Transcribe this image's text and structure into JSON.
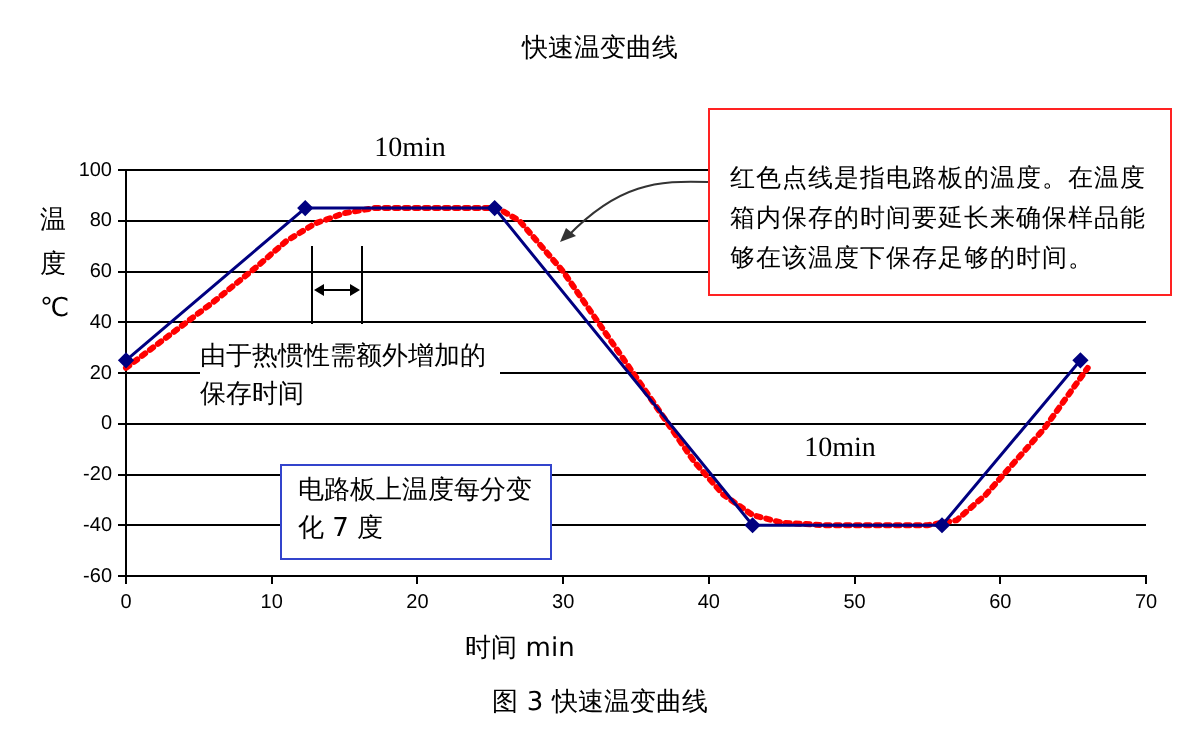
{
  "chart_data": {
    "type": "line",
    "title": "快速温变曲线",
    "xlabel": "时间 min",
    "ylabel": "温度℃",
    "xlim": [
      0,
      70
    ],
    "xticks": [
      0,
      10,
      20,
      30,
      40,
      50,
      60,
      70
    ],
    "ylim": [
      -60,
      100
    ],
    "yticks": [
      -60,
      -40,
      -20,
      0,
      20,
      40,
      60,
      80,
      100
    ],
    "grid": "y",
    "legend": false,
    "series": [
      {
        "color": "#000080",
        "marker": "diamond",
        "line_style": "solid",
        "x": [
          0,
          12.3,
          25.3,
          43,
          56,
          65.5
        ],
        "values": [
          25,
          85,
          85,
          -40,
          -40,
          25
        ]
      },
      {
        "color": "#ff0000",
        "marker": "none",
        "line_style": "dotted",
        "x": [
          0,
          3,
          6,
          9,
          11,
          13,
          15,
          17,
          20,
          25.5,
          27,
          30,
          33,
          36,
          39,
          41,
          43,
          45,
          48,
          52,
          55,
          57,
          59,
          61,
          63,
          65,
          66
        ],
        "values": [
          22,
          35,
          48,
          62,
          72,
          79,
          83,
          85,
          85,
          85,
          80,
          60,
          35,
          10,
          -15,
          -28,
          -36,
          -39,
          -40,
          -40,
          -40,
          -38,
          -28,
          -15,
          -2,
          14,
          22
        ]
      }
    ],
    "annotations": [
      "10min",
      "10min",
      "由于热惯性需额外增加的保存时间",
      "电路板上温度每分变化 7 度",
      "红色点线是指电路板的温度。在温度箱内保存的时间要延长来确保样品能够在该温度下保存足够的时间。",
      "图 3 快速温变曲线"
    ]
  }
}
